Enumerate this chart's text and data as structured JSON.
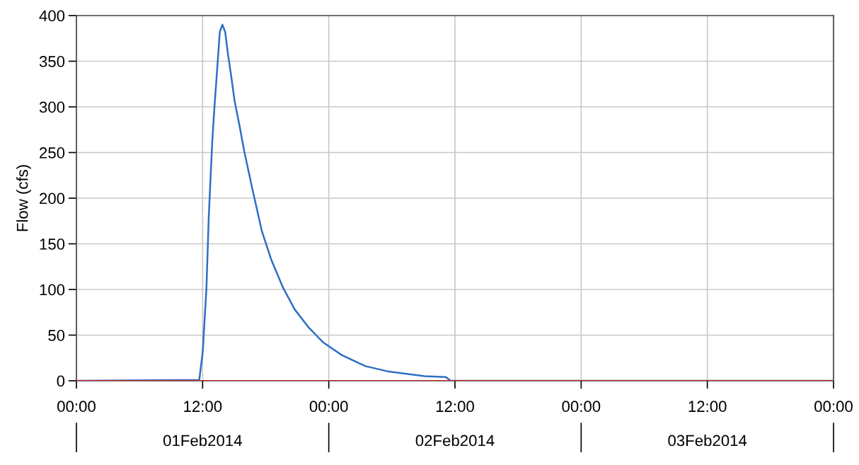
{
  "chart_data": {
    "type": "line",
    "ylabel": "Flow (cfs)",
    "x": [
      "2014-02-01T00:00",
      "2014-02-01T11:41",
      "2014-02-01T12:01",
      "2014-02-01T12:22",
      "2014-02-01T12:35",
      "2014-02-01T12:55",
      "2014-02-01T13:08",
      "2014-02-01T13:29",
      "2014-02-01T13:38",
      "2014-02-01T13:53",
      "2014-02-01T14:09",
      "2014-02-01T14:23",
      "2014-02-01T14:43",
      "2014-02-01T15:03",
      "2014-02-01T15:30",
      "2014-02-01T15:57",
      "2014-02-01T16:44",
      "2014-02-01T17:38",
      "2014-02-01T18:31",
      "2014-02-01T19:39",
      "2014-02-01T20:46",
      "2014-02-01T22:07",
      "2014-02-01T23:28",
      "2014-02-02T01:15",
      "2014-02-02T03:30",
      "2014-02-02T05:44",
      "2014-02-02T09:07",
      "2014-02-02T11:08",
      "2014-02-02T11:35",
      "2014-02-04T00:00"
    ],
    "series": [
      {
        "color": "#2e6fc4",
        "values": [
          0,
          1,
          32,
          102,
          179,
          262,
          301,
          357,
          382,
          390,
          382,
          360,
          334,
          306,
          280,
          252,
          210,
          164,
          133,
          102,
          78,
          58,
          42,
          28,
          16,
          10,
          5,
          4,
          0,
          0
        ]
      }
    ],
    "xlim": [
      "2014-02-01T00:00",
      "2014-02-04T00:00"
    ],
    "xticks": [
      {
        "value": "2014-02-01T00:00",
        "label": "00:00"
      },
      {
        "value": "2014-02-01T12:00",
        "label": "12:00"
      },
      {
        "value": "2014-02-02T00:00",
        "label": "00:00"
      },
      {
        "value": "2014-02-02T12:00",
        "label": "12:00"
      },
      {
        "value": "2014-02-03T00:00",
        "label": "00:00"
      },
      {
        "value": "2014-02-03T12:00",
        "label": "12:00"
      },
      {
        "value": "2014-02-04T00:00",
        "label": "00:00"
      }
    ],
    "x2lim": [
      "2014-02-01T00:00",
      "2014-02-04T00:00"
    ],
    "x2ticks": [
      {
        "value": "2014-02-01T00:00",
        "label": null
      },
      {
        "value": "2014-02-01T12:00",
        "label": "01Feb2014"
      },
      {
        "value": "2014-02-02T00:00",
        "label": null
      },
      {
        "value": "2014-02-02T12:00",
        "label": "02Feb2014"
      },
      {
        "value": "2014-02-03T00:00",
        "label": null
      },
      {
        "value": "2014-02-03T12:00",
        "label": "03Feb2014"
      },
      {
        "value": "2014-02-04T00:00",
        "label": null
      }
    ],
    "ylim": [
      0,
      400
    ],
    "yticks": [
      0,
      50,
      100,
      150,
      200,
      250,
      300,
      350,
      400
    ],
    "ref_lines": [
      {
        "axis": "y",
        "value": 0,
        "color": "#d62728",
        "line_style": "solid"
      }
    ],
    "grid": true,
    "legend": false,
    "marker": "none",
    "line_style": "solid"
  }
}
